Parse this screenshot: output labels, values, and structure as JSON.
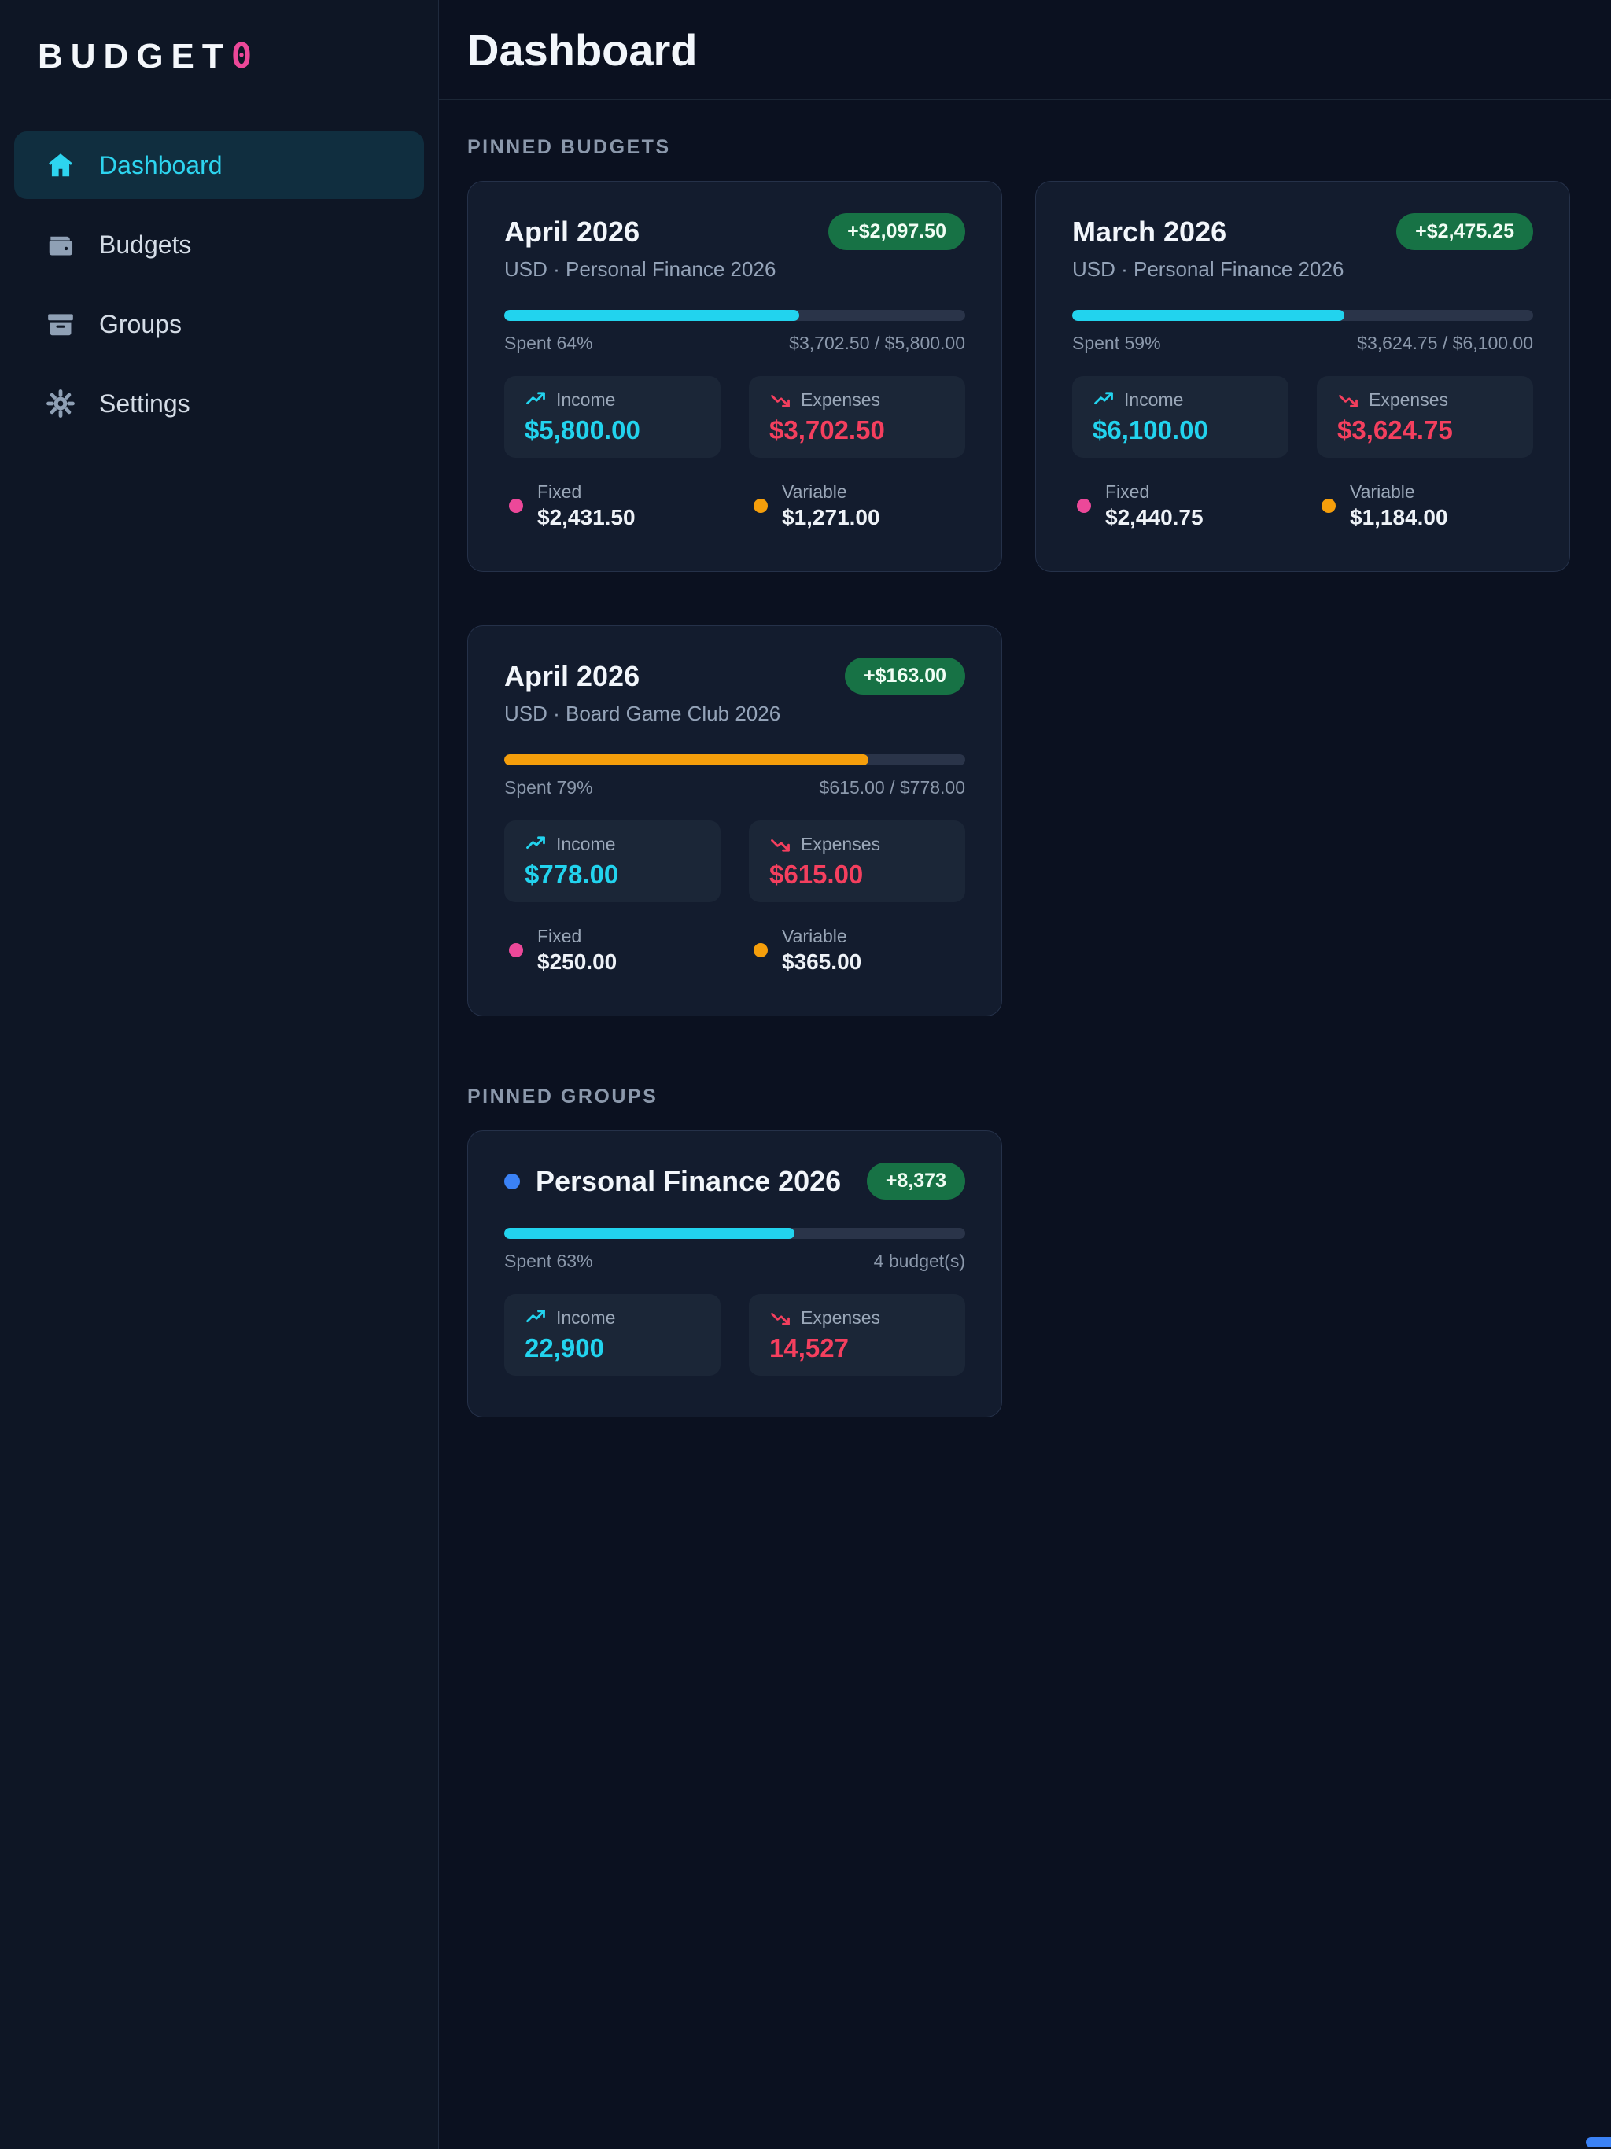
{
  "app": {
    "brand": "BUDGET",
    "brand_accent": "0"
  },
  "sidebar": {
    "items": [
      {
        "label": "Dashboard",
        "icon": "home-icon",
        "active": true
      },
      {
        "label": "Budgets",
        "icon": "wallet-icon",
        "active": false
      },
      {
        "label": "Groups",
        "icon": "archive-icon",
        "active": false
      },
      {
        "label": "Settings",
        "icon": "gear-icon",
        "active": false
      }
    ]
  },
  "header": {
    "title": "Dashboard"
  },
  "pinned_budgets": {
    "section_label": "PINNED BUDGETS",
    "cards": [
      {
        "title": "April 2026",
        "badge": "+$2,097.50",
        "subtitle": "USD · Personal Finance 2026",
        "spent_label": "Spent 64%",
        "progress_pct": 64,
        "bar_color": "#22d3ee",
        "ratio_label": "$3,702.50 / $5,800.00",
        "income_label": "Income",
        "income_value": "$5,800.00",
        "expenses_label": "Expenses",
        "expenses_value": "$3,702.50",
        "fixed_label": "Fixed",
        "fixed_value": "$2,431.50",
        "variable_label": "Variable",
        "variable_value": "$1,271.00"
      },
      {
        "title": "March 2026",
        "badge": "+$2,475.25",
        "subtitle": "USD · Personal Finance 2026",
        "spent_label": "Spent 59%",
        "progress_pct": 59,
        "bar_color": "#22d3ee",
        "ratio_label": "$3,624.75 / $6,100.00",
        "income_label": "Income",
        "income_value": "$6,100.00",
        "expenses_label": "Expenses",
        "expenses_value": "$3,624.75",
        "fixed_label": "Fixed",
        "fixed_value": "$2,440.75",
        "variable_label": "Variable",
        "variable_value": "$1,184.00"
      },
      {
        "title": "April 2026",
        "badge": "+$163.00",
        "subtitle": "USD · Board Game Club 2026",
        "spent_label": "Spent 79%",
        "progress_pct": 79,
        "bar_color": "#f59e0b",
        "ratio_label": "$615.00 / $778.00",
        "income_label": "Income",
        "income_value": "$778.00",
        "expenses_label": "Expenses",
        "expenses_value": "$615.00",
        "fixed_label": "Fixed",
        "fixed_value": "$250.00",
        "variable_label": "Variable",
        "variable_value": "$365.00"
      }
    ]
  },
  "pinned_groups": {
    "section_label": "PINNED GROUPS",
    "cards": [
      {
        "title": "Personal Finance 2026",
        "badge": "+8,373",
        "dot_color": "#3b82f6",
        "spent_label": "Spent 63%",
        "progress_pct": 63,
        "bar_color": "#22d3ee",
        "budgets_label": "4 budget(s)",
        "income_label": "Income",
        "income_value": "22,900",
        "expenses_label": "Expenses",
        "expenses_value": "14,527"
      }
    ]
  },
  "colors": {
    "accent_cyan": "#22d3ee",
    "accent_rose": "#f43f5e",
    "accent_pink": "#ec4899",
    "accent_amber": "#f59e0b",
    "accent_blue": "#3b82f6",
    "badge_green_bg": "#177245",
    "card_bg": "#131c2e",
    "page_bg": "#0b1120"
  }
}
